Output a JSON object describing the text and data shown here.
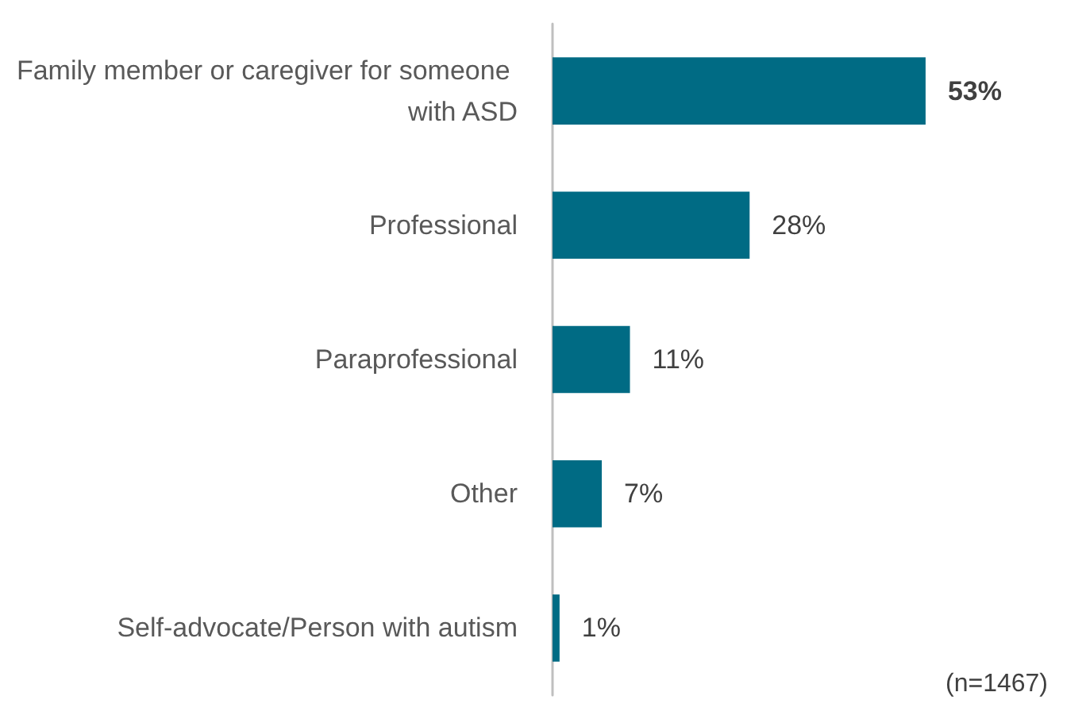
{
  "chart_data": {
    "type": "bar",
    "orientation": "horizontal",
    "categories": [
      "Family member or caregiver for someone with ASD",
      "Professional",
      "Paraprofessional",
      "Other",
      "Self-advocate/Person with autism"
    ],
    "values": [
      53,
      28,
      11,
      7,
      1
    ],
    "value_labels": [
      "53%",
      "28%",
      "11%",
      "7%",
      "1%"
    ],
    "color": "#006b84",
    "annotations": [
      "(n=1467)"
    ]
  }
}
